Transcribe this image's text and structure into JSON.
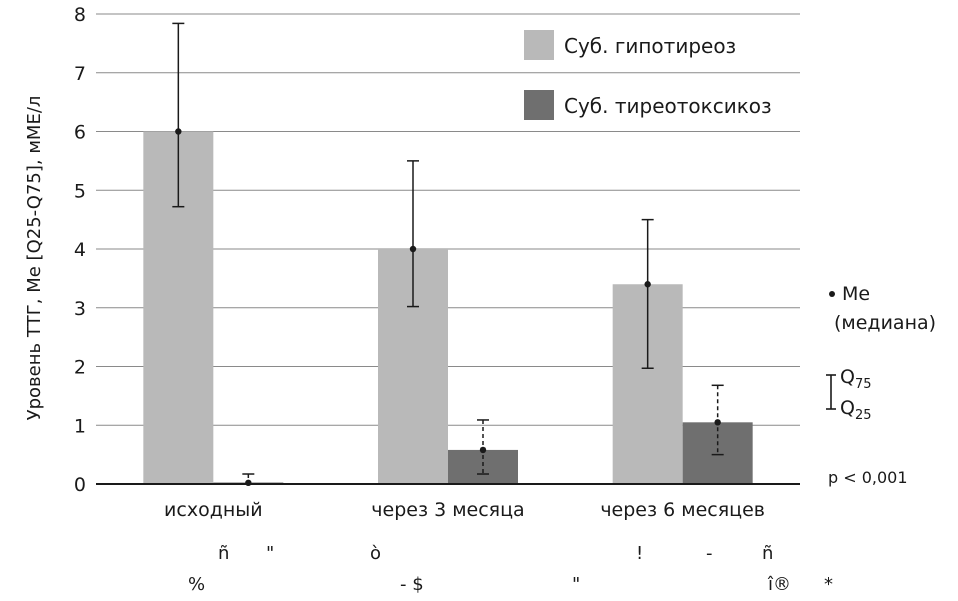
{
  "chart_data": {
    "type": "bar",
    "title": "",
    "xlabel": "",
    "ylabel": "Уровень ТТГ, Me [Q25-Q75], мМЕ/л",
    "ylim": [
      0,
      8
    ],
    "yticks": [
      0,
      1,
      2,
      3,
      4,
      5,
      6,
      7,
      8
    ],
    "grid": true,
    "legend_position": "top-right",
    "categories": [
      "исходный",
      "через 3 месяца",
      "через 6 месяцев"
    ],
    "series": [
      {
        "name": "Суб. гипотиреоз",
        "color": "#b9b9b9",
        "values": [
          6.0,
          4.0,
          3.4
        ],
        "q25": [
          4.72,
          3.02,
          1.97
        ],
        "q75": [
          7.84,
          5.5,
          4.5
        ],
        "error_style": "solid"
      },
      {
        "name": "Суб. тиреотоксикоз",
        "color": "#6f6f6f",
        "values": [
          0.02,
          0.58,
          1.05
        ],
        "q25": [
          0.0,
          0.17,
          0.5
        ],
        "q75": [
          0.17,
          1.09,
          1.68
        ],
        "error_style": "dashed"
      }
    ],
    "annotations": {
      "median_label": "Me",
      "median_desc": "(медиана)",
      "q75_main": "Q",
      "q75_sub": "75",
      "q25_main": "Q",
      "q25_sub": "25",
      "p_value": "p < 0,001"
    },
    "stray_text": [
      "ñ",
      "\"",
      "ò",
      "!",
      "-",
      "ñ",
      "%",
      "- $",
      "\"",
      "î®",
      "*"
    ]
  }
}
